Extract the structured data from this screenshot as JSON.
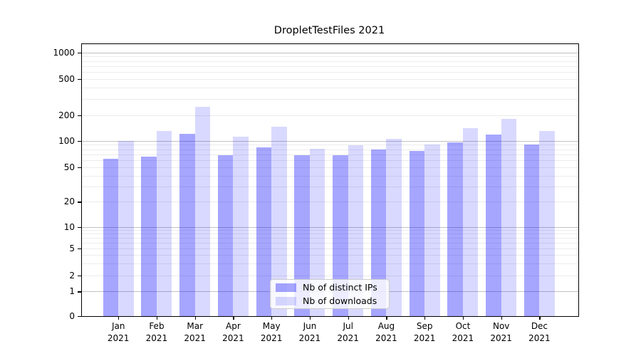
{
  "title": "DropletTestFiles 2021",
  "chart_data": {
    "type": "bar",
    "title": "DropletTestFiles 2021",
    "categories": [
      "Jan",
      "Feb",
      "Mar",
      "Apr",
      "May",
      "Jun",
      "Jul",
      "Aug",
      "Sep",
      "Oct",
      "Nov",
      "Dec"
    ],
    "year": "2021",
    "series": [
      {
        "name": "Nb of distinct IPs",
        "color": "rgba(0,0,255,0.35)",
        "values": [
          62,
          66,
          121,
          68,
          84,
          68,
          69,
          80,
          76,
          96,
          118,
          90
        ]
      },
      {
        "name": "Nb of downloads",
        "color": "rgba(0,0,255,0.15)",
        "values": [
          100,
          131,
          245,
          112,
          145,
          81,
          89,
          106,
          90,
          140,
          182,
          130
        ]
      }
    ],
    "xlabel": "",
    "ylabel": "",
    "yscale": "symlog",
    "ylim": [
      0,
      1250
    ],
    "yticks": [
      0,
      1,
      2,
      5,
      10,
      20,
      50,
      100,
      200,
      500,
      1000
    ],
    "grid": {
      "major": [
        1,
        10,
        100,
        1000
      ],
      "minor": [
        2,
        3,
        4,
        5,
        6,
        7,
        8,
        9,
        20,
        30,
        40,
        50,
        60,
        70,
        80,
        90,
        200,
        300,
        400,
        500,
        600,
        700,
        800,
        900
      ]
    },
    "legend_position": "lower center"
  },
  "colors": {
    "background": "#ffffff",
    "axis": "#000000",
    "text": "#000000",
    "grid_major": "#c2c2c2",
    "grid_minor": "#ececec",
    "bar_distinct_ips": "rgba(0,0,255,0.35)",
    "bar_downloads": "rgba(0,0,255,0.15)",
    "legend_bg": "rgba(255,255,255,0.8)",
    "legend_border": "#cccccc"
  },
  "axis_anchors": [
    [
      0,
      382
    ],
    [
      1,
      347.3
    ],
    [
      2,
      324.7
    ],
    [
      5,
      287
    ],
    [
      10,
      256.5
    ],
    [
      20,
      221.3
    ],
    [
      50,
      173
    ],
    [
      100,
      135.7
    ],
    [
      200,
      99.8
    ],
    [
      500,
      48.5
    ],
    [
      1000,
      11.7
    ]
  ]
}
